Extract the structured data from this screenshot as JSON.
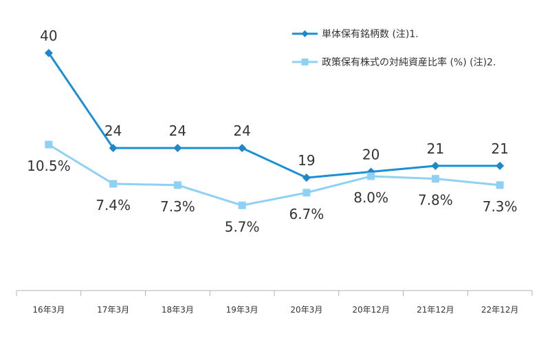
{
  "chart_data": {
    "type": "line",
    "categories": [
      "16年3月",
      "17年3月",
      "18年3月",
      "19年3月",
      "20年3月",
      "20年12月",
      "21年12月",
      "22年12月"
    ],
    "series": [
      {
        "name": "単体保有銘柄数 (注)1.",
        "values": [
          40,
          24,
          24,
          24,
          19,
          20,
          21,
          21
        ],
        "labels": [
          "40",
          "24",
          "24",
          "24",
          "19",
          "20",
          "21",
          "21"
        ],
        "color": "#1a8fd6",
        "marker": "diamond"
      },
      {
        "name": "政策保有株式の対純資産比率 (%) (注)2.",
        "values": [
          10.5,
          7.4,
          7.3,
          5.7,
          6.7,
          8.0,
          7.8,
          7.3
        ],
        "labels": [
          "10.5%",
          "7.4%",
          "7.3%",
          "5.7%",
          "6.7%",
          "8.0%",
          "7.8%",
          "7.3%"
        ],
        "color": "#8fd1f5",
        "marker": "square"
      }
    ],
    "legend_position": "top-right",
    "grid": false
  }
}
